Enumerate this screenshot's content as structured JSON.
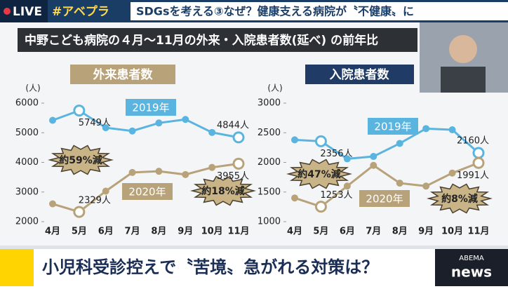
{
  "banner": {
    "live": "LIVE",
    "hashtag": "#アベプラ",
    "headline": "SDGsを考える③なぜ？健康支える病院が〝不健康〟に"
  },
  "panel_title": "中野こども病院の４月～11月の外来・入院患者数(延べ) の前年比",
  "chart_data": [
    {
      "type": "line",
      "title": "外来患者数",
      "y_unit": "(人)",
      "categories": [
        "4月",
        "5月",
        "6月",
        "7月",
        "8月",
        "9月",
        "10月",
        "11月"
      ],
      "series": [
        {
          "name": "2019年",
          "color": "#5ab4e0",
          "values": [
            5420,
            5749,
            5170,
            5060,
            5330,
            5450,
            5010,
            4844
          ],
          "value_labels": [
            null,
            "5749人",
            null,
            null,
            null,
            null,
            null,
            "4844人"
          ]
        },
        {
          "name": "2020年",
          "color": "#b8a27a",
          "values": [
            2600,
            2329,
            3030,
            3660,
            3700,
            3590,
            3830,
            3955
          ],
          "value_labels": [
            null,
            "2329人",
            null,
            null,
            null,
            null,
            null,
            "3955人"
          ]
        }
      ],
      "ylim": [
        2000,
        6000
      ],
      "yticks": [
        2000,
        3000,
        4000,
        5000,
        6000
      ],
      "annotations": [
        "約59%減",
        "約18%減"
      ]
    },
    {
      "type": "line",
      "title": "入院患者数",
      "y_unit": "(人)",
      "categories": [
        "4月",
        "5月",
        "6月",
        "7月",
        "8月",
        "9月",
        "10月",
        "11月"
      ],
      "series": [
        {
          "name": "2019年",
          "color": "#5ab4e0",
          "values": [
            2380,
            2356,
            2060,
            2100,
            2320,
            2570,
            2550,
            2160
          ],
          "value_labels": [
            null,
            "2356人",
            null,
            null,
            null,
            null,
            null,
            "2160人"
          ]
        },
        {
          "name": "2020年",
          "color": "#b8a27a",
          "values": [
            1400,
            1253,
            1600,
            1950,
            1650,
            1600,
            1820,
            1991
          ],
          "value_labels": [
            null,
            "1253人",
            null,
            null,
            null,
            null,
            null,
            "1991人"
          ]
        }
      ],
      "ylim": [
        1000,
        3000
      ],
      "yticks": [
        1000,
        1500,
        2000,
        2500,
        3000
      ],
      "annotations": [
        "約47%減",
        "約8%減"
      ]
    }
  ],
  "caption": "小児科受診控えで〝苦境〟急がれる対策は？",
  "logo": {
    "brand": "ABEMA",
    "name": "news"
  }
}
